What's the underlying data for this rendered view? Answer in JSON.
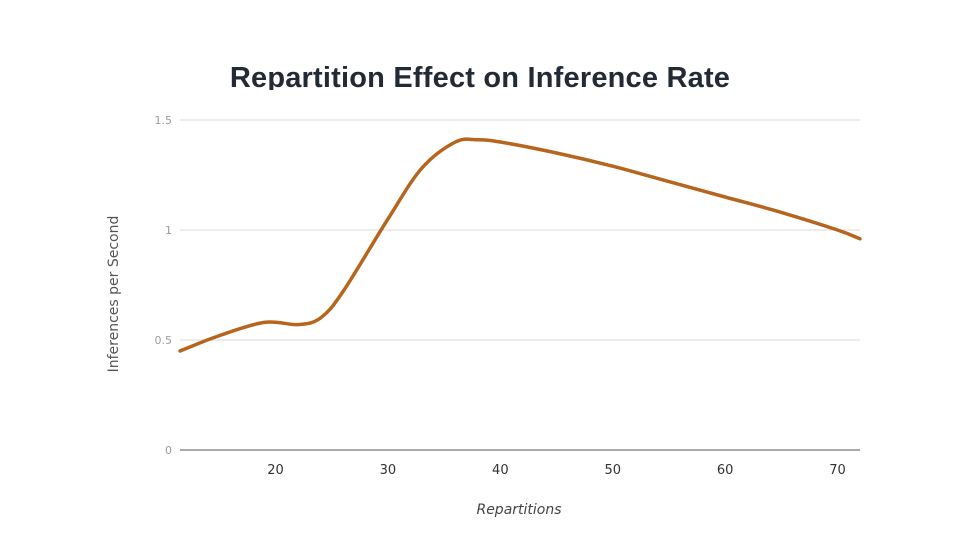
{
  "slide": {
    "title": "Repartition Effect on Inference Rate"
  },
  "chart_data": {
    "type": "line",
    "title": "Repartition Effect on Inference Rate",
    "xlabel": "Repartitions",
    "ylabel": "Inferences per Second",
    "xlim": [
      11.5,
      72
    ],
    "ylim": [
      0,
      1.5
    ],
    "x_ticks": [
      20,
      30,
      40,
      50,
      60,
      70
    ],
    "y_ticks": [
      0,
      0.5,
      1,
      1.5
    ],
    "y_tick_labels": [
      "0",
      "0.5",
      "1",
      "1.5"
    ],
    "grid": true,
    "legend": "none",
    "series": [
      {
        "color": "#b5651d",
        "x": [
          11.5,
          15,
          19,
          22,
          24,
          26,
          30,
          33,
          36,
          38,
          40,
          45,
          50,
          55,
          60,
          65,
          70,
          72
        ],
        "y": [
          0.45,
          0.52,
          0.58,
          0.57,
          0.6,
          0.72,
          1.05,
          1.28,
          1.4,
          1.41,
          1.4,
          1.35,
          1.29,
          1.22,
          1.15,
          1.08,
          1.0,
          0.96
        ]
      }
    ]
  }
}
